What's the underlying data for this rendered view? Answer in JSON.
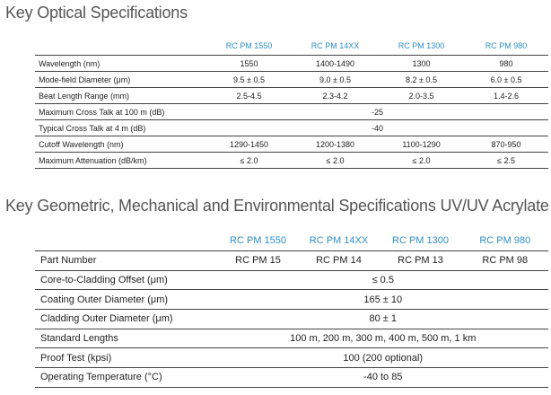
{
  "optical": {
    "title": "Key Optical Specifications",
    "columns": [
      "RC PM 1550",
      "RC PM 14XX",
      "RC PM 1300",
      "RC PM 980"
    ],
    "rows": [
      {
        "label": "Wavelength (nm)",
        "values": [
          "1550",
          "1400-1490",
          "1300",
          "980"
        ]
      },
      {
        "label": "Mode-field Diameter (μm)",
        "values": [
          "9.5 ± 0.5",
          "9.0 ± 0.5",
          "8.2 ± 0.5",
          "6.0 ± 0.5"
        ]
      },
      {
        "label": "Beat Length Range (mm)",
        "values": [
          "2.5-4.5",
          "2.3-4.2",
          "2.0-3.5",
          "1.4-2.6"
        ]
      },
      {
        "label": "Maximum Cross Talk at 100 m (dB)",
        "span": "-25"
      },
      {
        "label": "Typical Cross Talk at 4 m (dB)",
        "span": "-40"
      },
      {
        "label": "Cutoff Wavelength (nm)",
        "values": [
          "1290-1450",
          "1200-1380",
          "1100-1290",
          "870-950"
        ]
      },
      {
        "label": "Maximum Attenuation (dB/km)",
        "values": [
          "≤ 2.0",
          "≤ 2.0",
          "≤ 2.0",
          "≤ 2.5"
        ]
      }
    ]
  },
  "geometric": {
    "title": "Key Geometric, Mechanical and Environmental Specifications UV/UV Acrylate",
    "columns": [
      "RC PM 1550",
      "RC PM 14XX",
      "RC PM 1300",
      "RC PM 980"
    ],
    "rows": [
      {
        "label": "Part Number",
        "values": [
          "RC PM 15",
          "RC PM 14",
          "RC PM 13",
          "RC PM 98"
        ]
      },
      {
        "label": "Core-to-Cladding Offset (μm)",
        "span": "≤ 0.5"
      },
      {
        "label": "Coating Outer Diameter (μm)",
        "span": "165 ± 10"
      },
      {
        "label": "Cladding Outer Diameter (μm)",
        "span": "80 ± 1"
      },
      {
        "label": "Standard Lengths",
        "span": "100 m, 200 m, 300 m, 400 m, 500 m, 1 km"
      },
      {
        "label": "Proof Test (kpsi)",
        "span": "100 (200 optional)"
      },
      {
        "label": "Operating Temperature (°C)",
        "span": "-40 to 85"
      }
    ]
  }
}
